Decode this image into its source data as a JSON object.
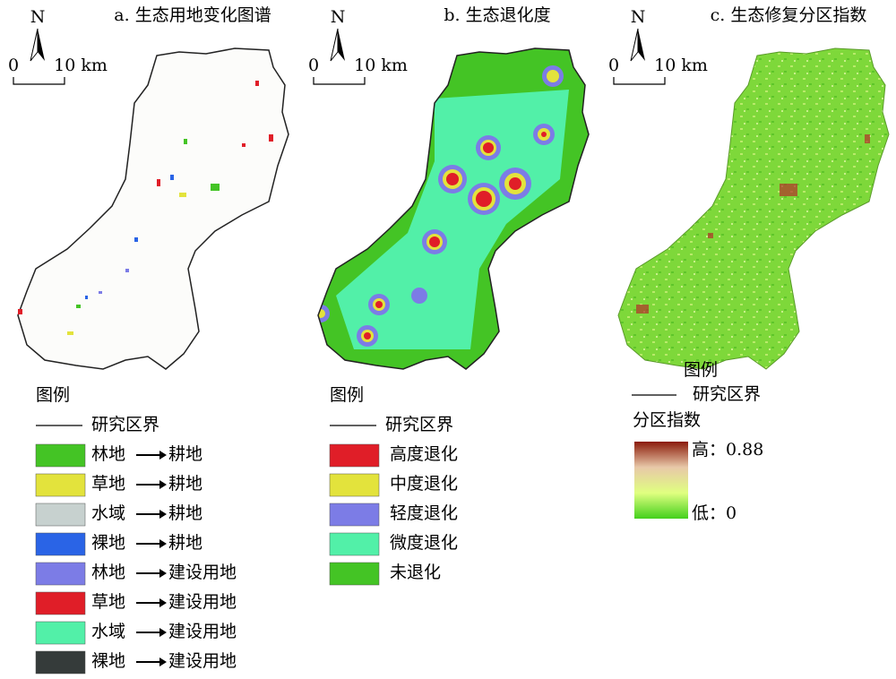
{
  "panels": [
    {
      "title": "a. 生态用地变化图谱",
      "north": "N",
      "scale_start": "0",
      "scale_end": "10 km",
      "legend": {
        "title": "图例",
        "boundary": "研究区界",
        "items": [
          {
            "from": "林地",
            "to": "耕地",
            "color": "#44c425"
          },
          {
            "from": "草地",
            "to": "耕地",
            "color": "#e3e33c"
          },
          {
            "from": "水域",
            "to": "耕地",
            "color": "#c7d1cf"
          },
          {
            "from": "裸地",
            "to": "耕地",
            "color": "#2a64e6"
          },
          {
            "from": "林地",
            "to": "建设用地",
            "color": "#7c7ce6"
          },
          {
            "from": "草地",
            "to": "建设用地",
            "color": "#e01e28"
          },
          {
            "from": "水域",
            "to": "建设用地",
            "color": "#52f0a8"
          },
          {
            "from": "裸地",
            "to": "建设用地",
            "color": "#353b3a"
          }
        ]
      }
    },
    {
      "title": "b. 生态退化度",
      "north": "N",
      "scale_start": "0",
      "scale_end": "10 km",
      "legend": {
        "title": "图例",
        "boundary": "研究区界",
        "items": [
          {
            "label": "高度退化",
            "color": "#e01e28"
          },
          {
            "label": "中度退化",
            "color": "#e3e33c"
          },
          {
            "label": "轻度退化",
            "color": "#7c7ce6"
          },
          {
            "label": "微度退化",
            "color": "#52f0a8"
          },
          {
            "label": "未退化",
            "color": "#44c425"
          }
        ]
      }
    },
    {
      "title": "c. 生态修复分区指数",
      "north": "N",
      "scale_start": "0",
      "scale_end": "10 km",
      "legend": {
        "title": "图例",
        "boundary": "研究区界",
        "index_title": "分区指数",
        "high": "高：0.88",
        "low": "低：0",
        "gradient": [
          "#8b1a0a",
          "#e8c8a8",
          "#e0ff80",
          "#44d01c"
        ]
      }
    }
  ]
}
